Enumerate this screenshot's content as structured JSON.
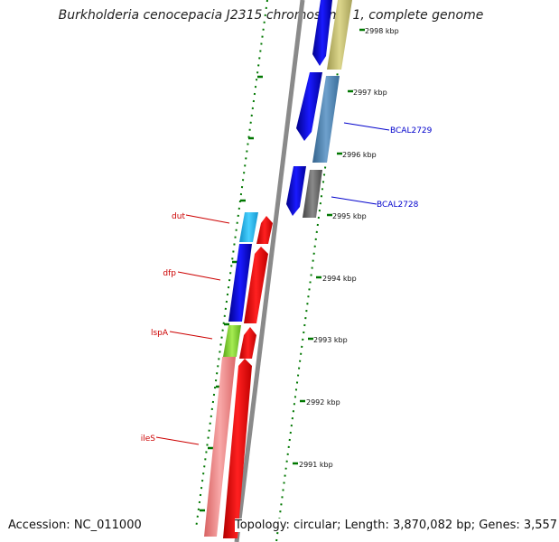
{
  "title": "Burkholderia cenocepacia J2315 chromosome 1, complete genome",
  "footer": {
    "accession": "Accession: NC_011000",
    "summary": "Topology: circular; Length: 3,870,082 bp; Genes: 3,557"
  },
  "ticks": [
    {
      "label": "2998 kbp"
    },
    {
      "label": "2997 kbp"
    },
    {
      "label": "2996 kbp"
    },
    {
      "label": "2995 kbp"
    },
    {
      "label": "2994 kbp"
    },
    {
      "label": "2993 kbp"
    },
    {
      "label": "2992 kbp"
    },
    {
      "label": "2991 kbp"
    }
  ],
  "gene_labels": [
    {
      "name": "dut",
      "color": "#cc0000"
    },
    {
      "name": "dfp",
      "color": "#cc0000"
    },
    {
      "name": "lspA",
      "color": "#cc0000"
    },
    {
      "name": "ileS",
      "color": "#cc0000"
    },
    {
      "name": "BCAL2729",
      "color": "#0000cc"
    },
    {
      "name": "BCAL2728",
      "color": "#0000cc"
    }
  ],
  "colors": {
    "backbone": "#8a8a8a",
    "tick": "#007700",
    "cds_blue": "#0000ee",
    "cds_red": "#ee0000",
    "gene_olive": "#bdb76b",
    "gene_steel": "#4682b4",
    "gene_gray": "#666666",
    "gene_cyan": "#1eb4ee",
    "gene_green": "#7dd321",
    "gene_pink": "#f08080"
  }
}
